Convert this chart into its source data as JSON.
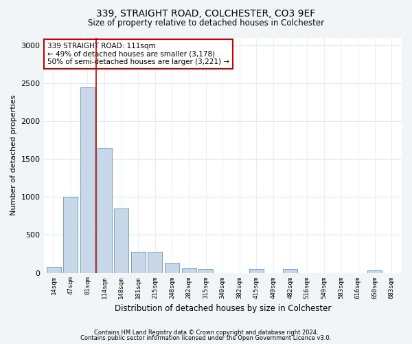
{
  "title1": "339, STRAIGHT ROAD, COLCHESTER, CO3 9EF",
  "title2": "Size of property relative to detached houses in Colchester",
  "xlabel": "Distribution of detached houses by size in Colchester",
  "ylabel": "Number of detached properties",
  "categories": [
    "14sqm",
    "47sqm",
    "81sqm",
    "114sqm",
    "148sqm",
    "181sqm",
    "215sqm",
    "248sqm",
    "282sqm",
    "315sqm",
    "349sqm",
    "382sqm",
    "415sqm",
    "449sqm",
    "482sqm",
    "516sqm",
    "549sqm",
    "583sqm",
    "616sqm",
    "650sqm",
    "683sqm"
  ],
  "values": [
    80,
    1000,
    2450,
    1650,
    850,
    280,
    280,
    130,
    60,
    50,
    0,
    0,
    50,
    0,
    50,
    0,
    0,
    0,
    0,
    30,
    0
  ],
  "bar_color": "#c8d8e8",
  "bar_edge_color": "#6699bb",
  "vline_x_index": 2.5,
  "vline_color": "#cc0000",
  "annotation_text": "339 STRAIGHT ROAD: 111sqm\n← 49% of detached houses are smaller (3,178)\n50% of semi-detached houses are larger (3,221) →",
  "annotation_box_color": "#ffffff",
  "annotation_box_edge_color": "#cc0000",
  "ylim": [
    0,
    3100
  ],
  "yticks": [
    0,
    500,
    1000,
    1500,
    2000,
    2500,
    3000
  ],
  "footer1": "Contains HM Land Registry data © Crown copyright and database right 2024.",
  "footer2": "Contains public sector information licensed under the Open Government Licence v3.0.",
  "background_color": "#f2f5f8",
  "plot_bg_color": "#ffffff",
  "grid_color": "#dde8f0"
}
